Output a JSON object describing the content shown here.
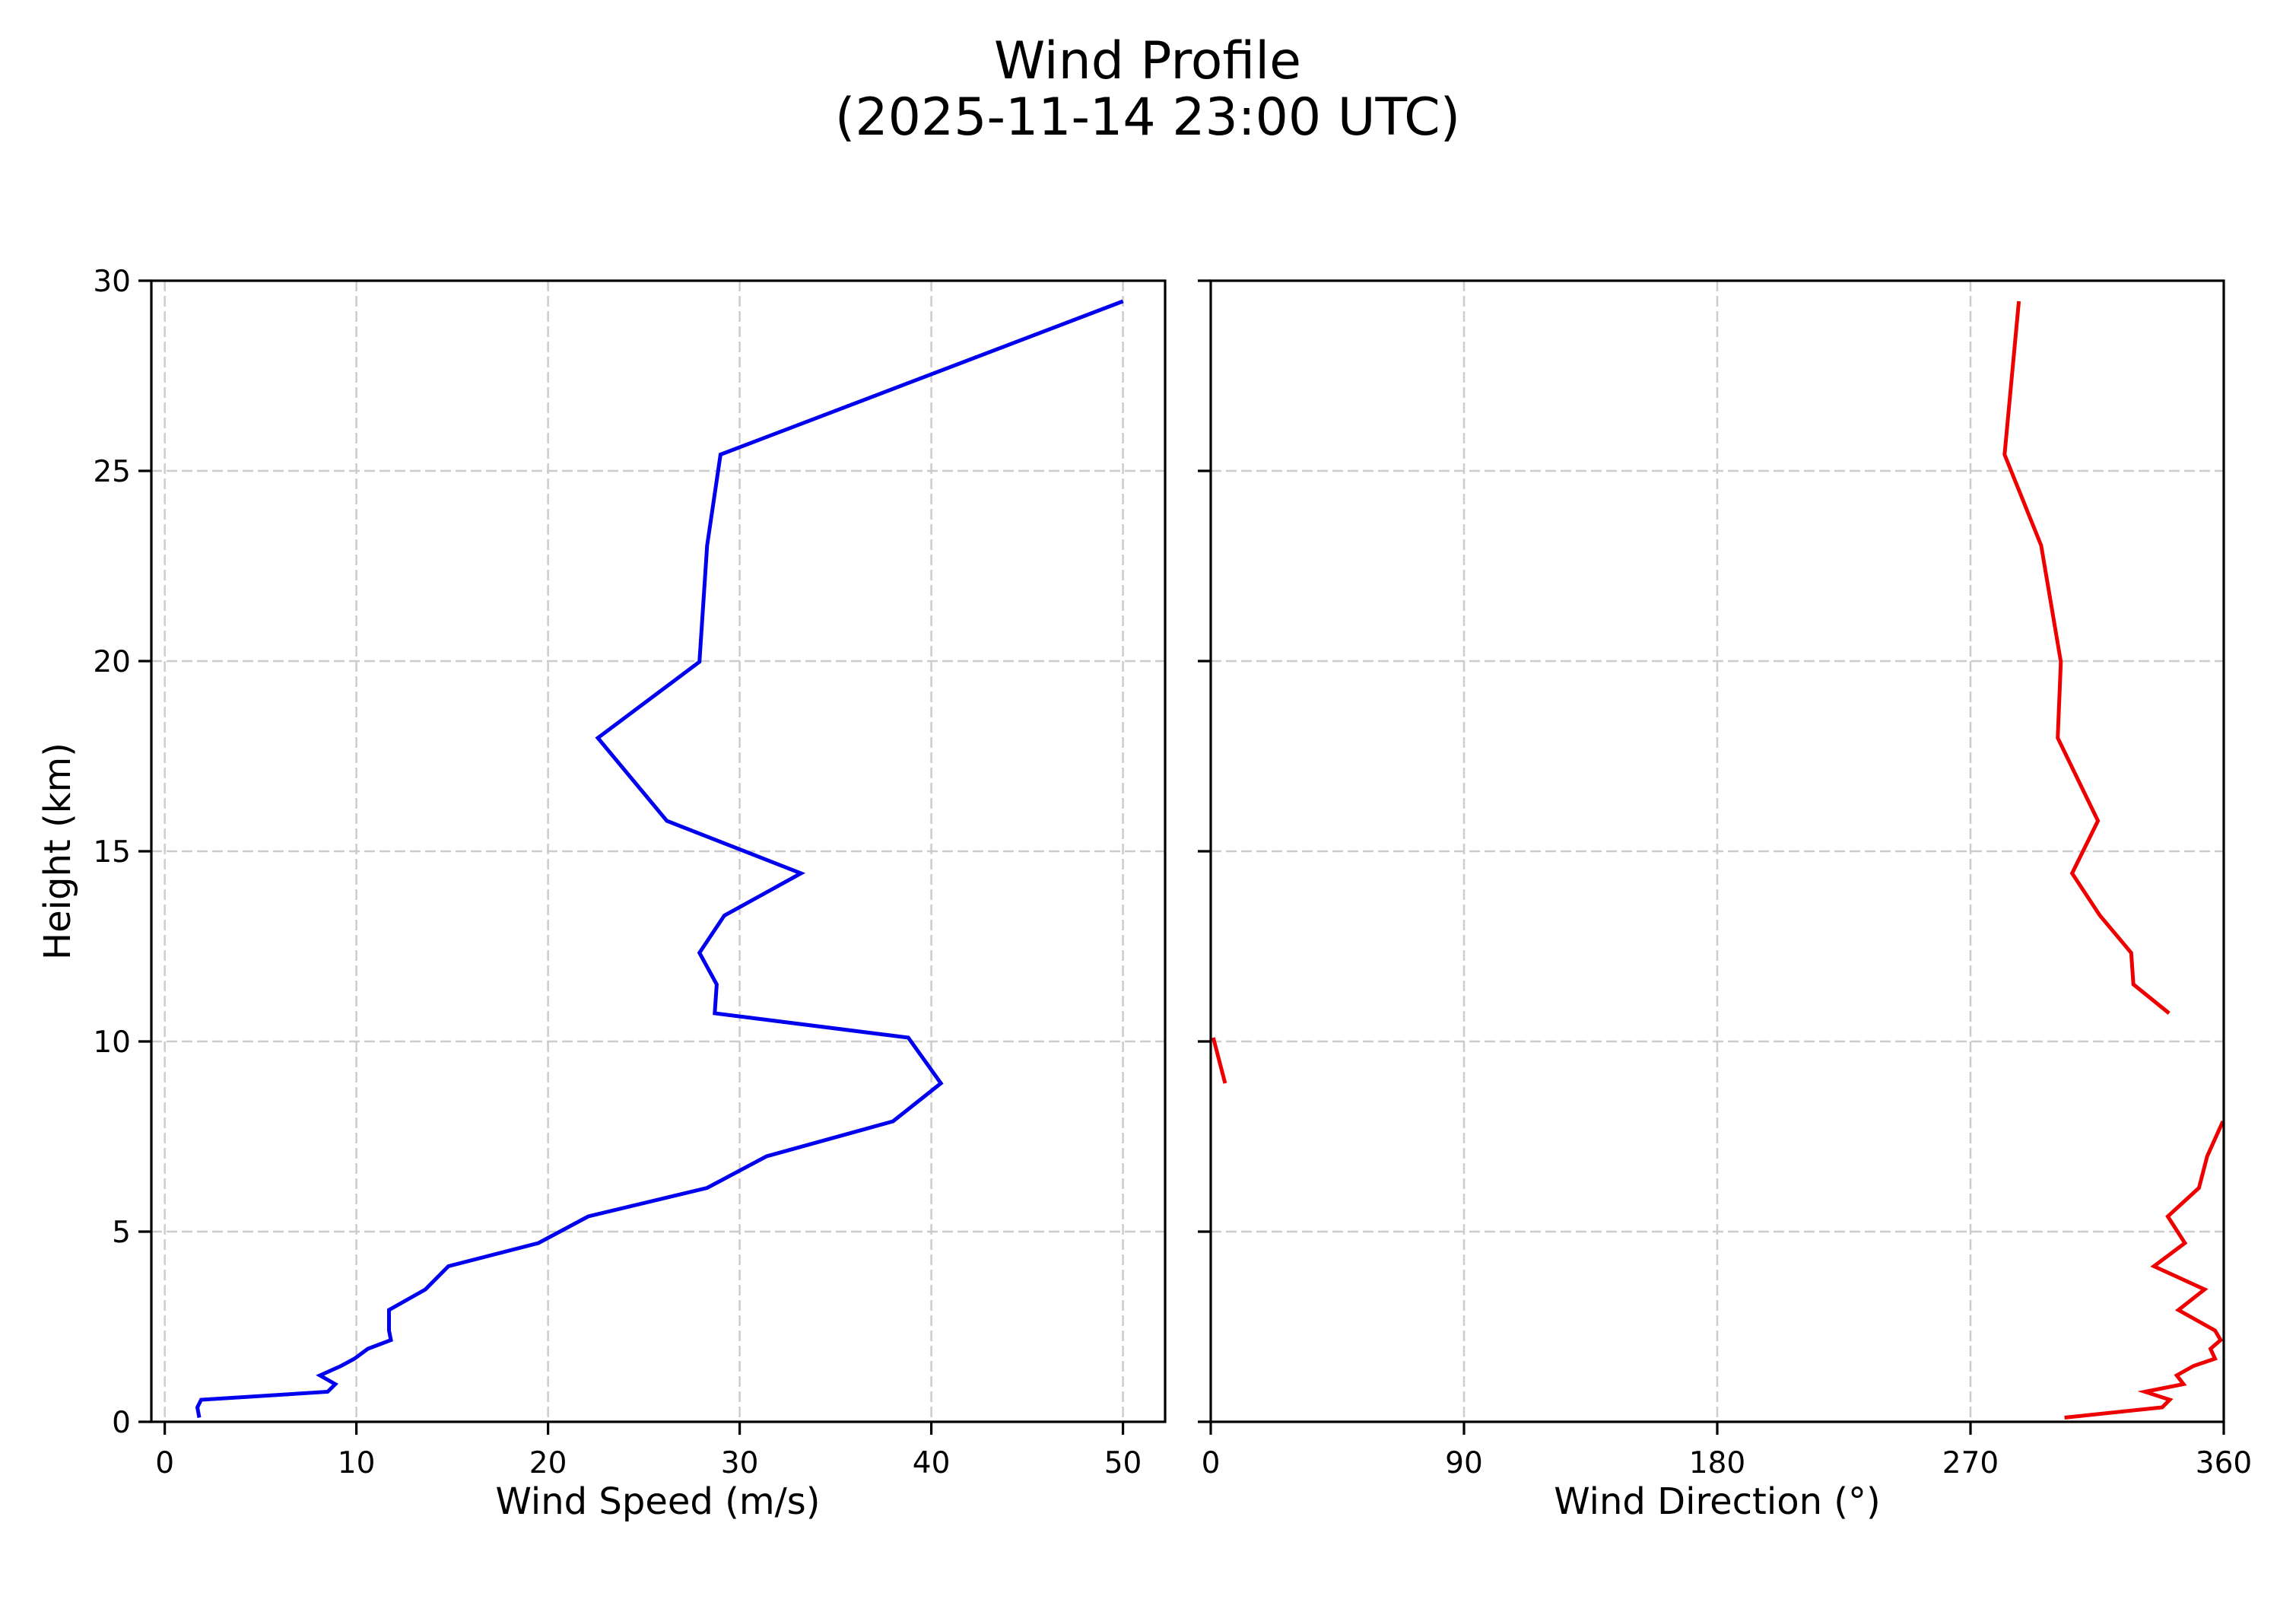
{
  "figure": {
    "title_line1": "Wind Profile",
    "title_line2": "(2025-11-14 23:00 UTC)"
  },
  "left_panel": {
    "xlabel": "Wind Speed (m/s)",
    "ylabel": "Height (km)",
    "xticks": [
      "0",
      "10",
      "20",
      "30",
      "40",
      "50"
    ],
    "yticks": [
      "0",
      "5",
      "10",
      "15",
      "20",
      "25",
      "30"
    ],
    "line_color": "#0000ee"
  },
  "right_panel": {
    "xlabel": "Wind Direction (°)",
    "xticks": [
      "0",
      "90",
      "180",
      "270",
      "360"
    ],
    "line_color": "#ee0000"
  },
  "colors": {
    "speed": "#0000ee",
    "direction": "#ee0000",
    "grid": "#cccccc",
    "axes": "#000000"
  },
  "chart_data": [
    {
      "type": "line",
      "title": "Wind Profile (2025-11-14 23:00 UTC)",
      "xlabel": "Wind Speed (m/s)",
      "ylabel": "Height (km)",
      "xlim": [
        -0.7,
        52.2
      ],
      "ylim": [
        0,
        30
      ],
      "xticks": [
        0,
        10,
        20,
        30,
        40,
        50
      ],
      "yticks": [
        0,
        5,
        10,
        15,
        20,
        25,
        30
      ],
      "grid": true,
      "grid_style": "dashed",
      "series": [
        {
          "name": "Wind Speed",
          "color": "#0000ee",
          "y": [
            0.11,
            0.38,
            0.58,
            0.79,
            0.99,
            1.22,
            1.47,
            1.66,
            1.92,
            2.15,
            2.4,
            2.94,
            3.48,
            4.09,
            4.7,
            5.4,
            6.15,
            6.98,
            7.9,
            8.9,
            10.1,
            10.74,
            11.5,
            12.33,
            13.31,
            14.42,
            15.8,
            17.98,
            19.98,
            23.04,
            25.43,
            29.46
          ],
          "x": [
            1.8,
            1.7,
            1.9,
            8.5,
            8.9,
            8.1,
            9.2,
            9.9,
            10.6,
            11.8,
            11.7,
            11.7,
            13.6,
            14.8,
            19.5,
            22.1,
            28.3,
            31.4,
            38.0,
            40.5,
            38.8,
            28.7,
            28.8,
            27.9,
            29.2,
            33.2,
            26.2,
            22.6,
            27.9,
            28.3,
            29.0,
            50.0
          ]
        }
      ]
    },
    {
      "type": "line",
      "xlabel": "Wind Direction (°)",
      "ylabel": "Height (km)",
      "xlim": [
        0,
        360
      ],
      "ylim": [
        0,
        30
      ],
      "xticks": [
        0,
        90,
        180,
        270,
        360
      ],
      "yticks": [
        0,
        5,
        10,
        15,
        20,
        25,
        30
      ],
      "grid": true,
      "grid_style": "dashed",
      "shared_y": true,
      "series": [
        {
          "name": "Wind Direction",
          "color": "#ee0000",
          "y": [
            0.11,
            0.38,
            0.58,
            0.79,
            0.99,
            1.22,
            1.47,
            1.66,
            1.92,
            2.15,
            2.4,
            2.94,
            3.48,
            4.09,
            4.7,
            5.4,
            6.15,
            6.98,
            7.9,
            8.9,
            10.1,
            10.74,
            11.5,
            12.33,
            13.31,
            14.42,
            15.8,
            17.98,
            19.98,
            23.04,
            25.43,
            29.46
          ],
          "x": [
            303.4,
            338.1,
            340.8,
            332.0,
            345.7,
            343.3,
            349.3,
            356.9,
            355.3,
            358.9,
            356.9,
            343.9,
            353.2,
            335.2,
            346.2,
            340.1,
            351.2,
            354.1,
            359.7,
            5.1,
            0.9,
            340.6,
            327.9,
            327.1,
            316.0,
            306.1,
            315.3,
            301.0,
            302.1,
            295.1,
            282.1,
            287.2
          ],
          "note": "line is broken where direction wraps across 0/360"
        }
      ]
    }
  ]
}
